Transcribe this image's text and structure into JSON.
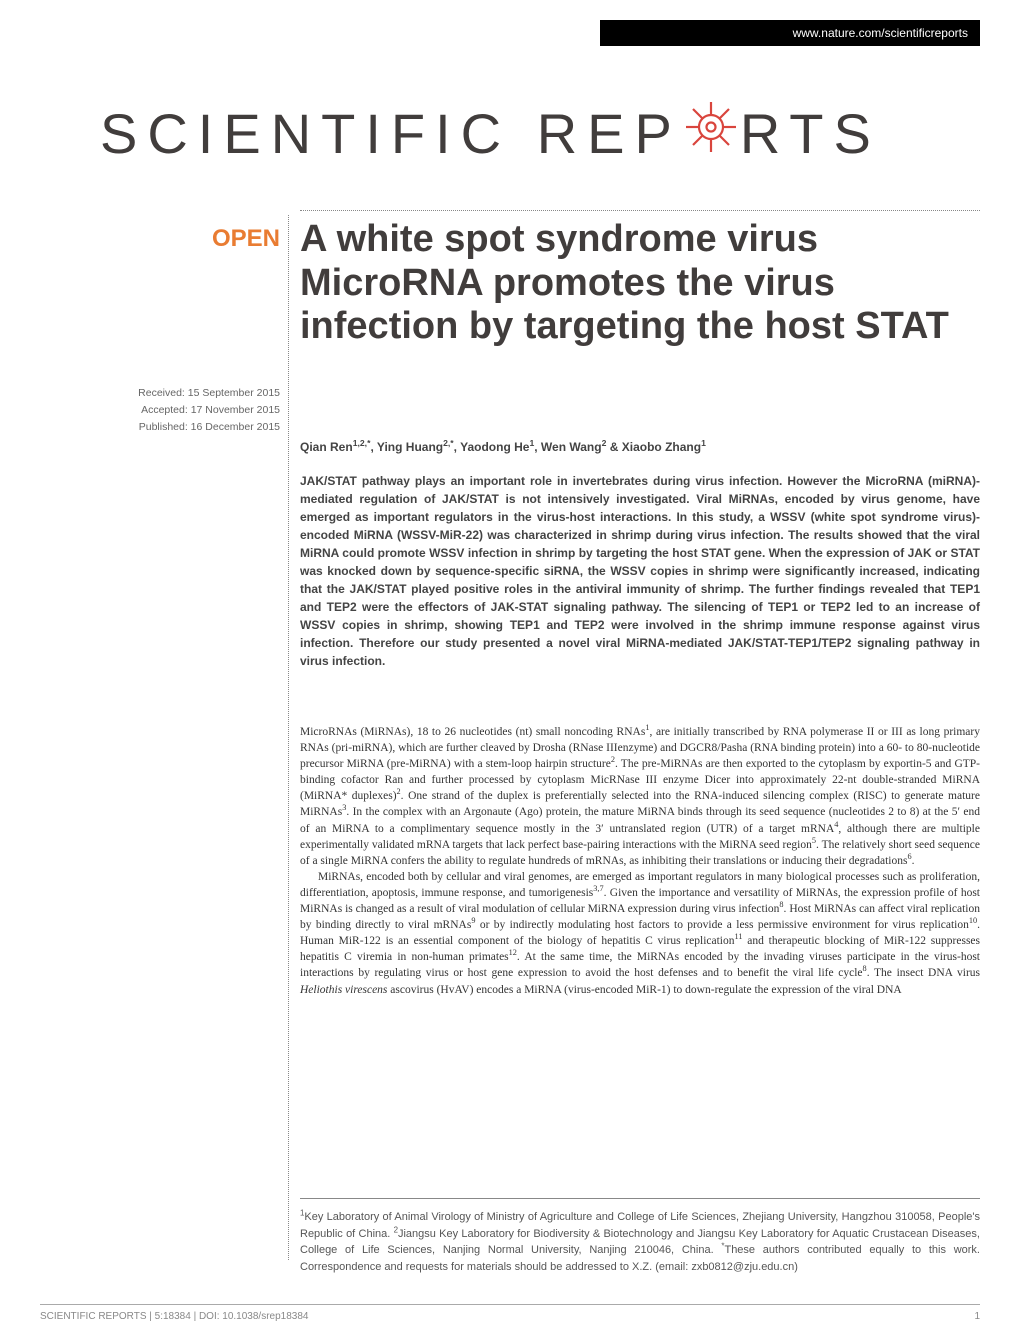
{
  "header": {
    "url": "www.nature.com/scientificreports"
  },
  "logo": {
    "word1": "SCIENTIFIC",
    "word2a": "REP",
    "word2b": "RTS"
  },
  "badge": {
    "open": "OPEN"
  },
  "dates": {
    "received": "Received: 15 September 2015",
    "accepted": "Accepted: 17 November 2015",
    "published": "Published: 16 December 2015"
  },
  "article": {
    "title": "A white spot syndrome virus MicroRNA promotes the virus infection by targeting the host STAT",
    "authors_html": "Qian Ren<sup>1,2,*</sup>, Ying Huang<sup>2,*</sup>, Yaodong He<sup>1</sup>, Wen Wang<sup>2</sup> & Xiaobo Zhang<sup>1</sup>",
    "abstract": "JAK/STAT pathway plays an important role in invertebrates during virus infection. However the MicroRNA (miRNA)-mediated regulation of JAK/STAT is not intensively investigated. Viral MiRNAs, encoded by virus genome, have emerged as important regulators in the virus-host interactions. In this study, a WSSV (white spot syndrome virus)-encoded MiRNA (WSSV-MiR-22) was characterized in shrimp during virus infection. The results showed that the viral MiRNA could promote WSSV infection in shrimp by targeting the host STAT gene. When the expression of JAK or STAT was knocked down by sequence-specific siRNA, the WSSV copies in shrimp were significantly increased, indicating that the JAK/STAT played positive roles in the antiviral immunity of shrimp. The further findings revealed that TEP1 and TEP2 were the effectors of JAK-STAT signaling pathway. The silencing of TEP1 or TEP2 led to an increase of WSSV copies in shrimp, showing TEP1 and TEP2 were involved in the shrimp immune response against virus infection. Therefore our study presented a novel viral MiRNA-mediated JAK/STAT-TEP1/TEP2 signaling pathway in virus infection.",
    "para1_html": "MicroRNAs (MiRNAs), 18 to 26 nucleotides (nt) small noncoding RNAs<sup>1</sup>, are initially transcribed by RNA polymerase II or III as long primary RNAs (pri-miRNA), which are further cleaved by Drosha (RNase IIIenzyme) and DGCR8/Pasha (RNA binding protein) into a 60- to 80-nucleotide precursor MiRNA (pre-MiRNA) with a stem-loop hairpin structure<sup>2</sup>. The pre-MiRNAs are then exported to the cytoplasm by exportin-5 and GTP-binding cofactor Ran and further processed by cytoplasm MicRNase III enzyme Dicer into approximately 22-nt double-stranded MiRNA (MiRNA* duplexes)<sup>2</sup>. One strand of the duplex is preferentially selected into the RNA-induced silencing complex (RISC) to generate mature MiRNAs<sup>3</sup>. In the complex with an Argonaute (Ago) protein, the mature MiRNA binds through its seed sequence (nucleotides 2 to 8) at the 5′ end of an MiRNA to a complimentary sequence mostly in the 3′ untranslated region (UTR) of a target mRNA<sup>4</sup>, although there are multiple experimentally validated mRNA targets that lack perfect base-pairing interactions with the MiRNA seed region<sup>5</sup>. The relatively short seed sequence of a single MiRNA confers the ability to regulate hundreds of mRNAs, as inhibiting their translations or inducing their degradations<sup>6</sup>.",
    "para2_html": "MiRNAs, encoded both by cellular and viral genomes, are emerged as important regulators in many biological processes such as proliferation, differentiation, apoptosis, immune response, and tumorigenesis<sup>3,7</sup>. Given the importance and versatility of MiRNAs, the expression profile of host MiRNAs is changed as a result of viral modulation of cellular MiRNA expression during virus infection<sup>8</sup>. Host MiRNAs can affect viral replication by binding directly to viral mRNAs<sup>9</sup> or by indirectly modulating host factors to provide a less permissive environment for virus replication<sup>10</sup>. Human MiR-122 is an essential component of the biology of hepatitis C virus replication<sup>11</sup> and therapeutic blocking of MiR-122 suppresses hepatitis C viremia in non-human primates<sup>12</sup>. At the same time, the MiRNAs encoded by the invading viruses participate in the virus-host interactions by regulating virus or host gene expression to avoid the host defenses and to benefit the viral life cycle<sup>8</sup>. The insect DNA virus <i>Heliothis virescens</i> ascovirus (HvAV) encodes a MiRNA (virus-encoded MiR-1) to down-regulate the expression of the viral DNA",
    "affiliations_html": "<sup>1</sup>Key Laboratory of Animal Virology of Ministry of Agriculture and College of Life Sciences, Zhejiang University, Hangzhou 310058, People's Republic of China. <sup>2</sup>Jiangsu Key Laboratory for Biodiversity & Biotechnology and Jiangsu Key Laboratory for Aquatic Crustacean Diseases, College of Life Sciences, Nanjing Normal University, Nanjing 210046, China. <sup>*</sup>These authors contributed equally to this work. Correspondence and requests for materials should be addressed to X.Z. (email: zxb0812@zju.edu.cn)"
  },
  "footer": {
    "citation": "SCIENTIFIC REPORTS | 5:18384 | DOI: 10.1038/srep18384",
    "page": "1"
  },
  "colors": {
    "accent": "#e97c32",
    "text_dark": "#413d3c",
    "header_bg": "#000000",
    "header_fg": "#ffffff"
  }
}
